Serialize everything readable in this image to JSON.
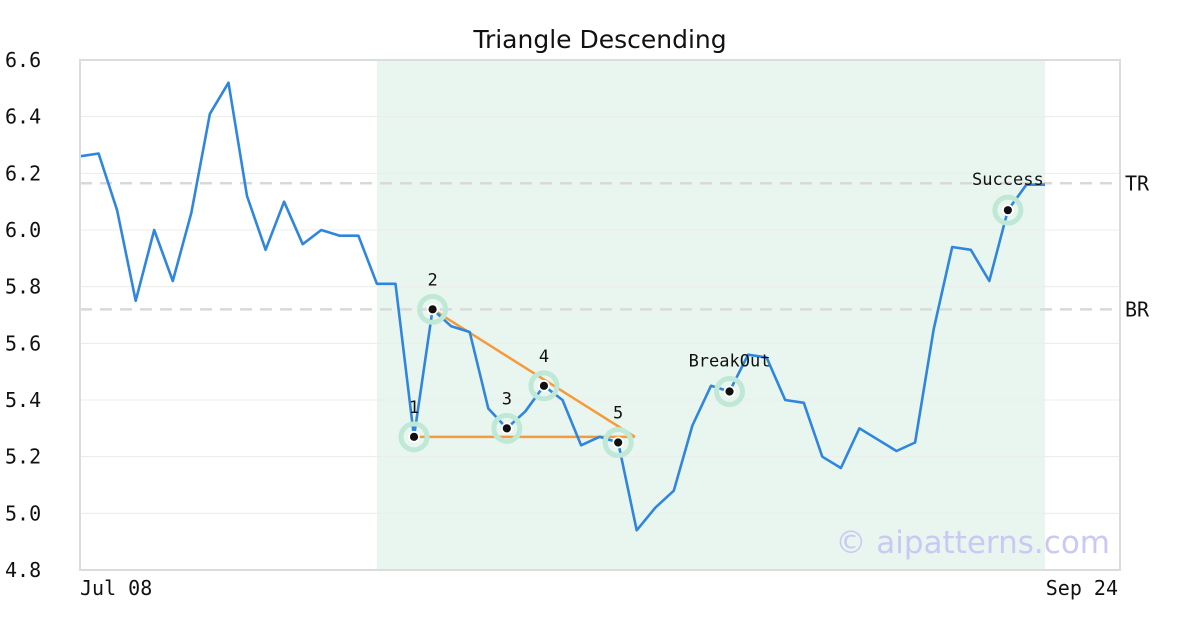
{
  "chart_data": {
    "type": "line",
    "title": "Triangle Descending",
    "watermark": "© aipatterns.com",
    "ylim": [
      4.8,
      6.6
    ],
    "y_ticks": [
      "6.6",
      "6.4",
      "6.2",
      "6.0",
      "5.8",
      "5.6",
      "5.4",
      "5.2",
      "5.0",
      "4.8"
    ],
    "x_tick_labels": [
      "Jul 08",
      "Sep 24"
    ],
    "grid": true,
    "colors": {
      "price": "#2f86de",
      "pattern": "#f59b3c",
      "highlight": "#e9f6ef",
      "marker_ring": "#bfe8d6",
      "level_line": "#d9d9d9"
    },
    "series": [
      {
        "values": [
          6.26,
          6.27,
          6.07,
          5.75,
          6.0,
          5.82,
          6.06,
          6.41,
          6.52,
          6.12,
          5.93,
          6.1,
          5.95,
          6.0,
          5.98,
          5.98,
          5.81,
          5.81,
          5.27,
          5.72,
          5.66,
          5.64,
          5.37,
          5.3,
          5.36,
          5.45,
          5.4,
          5.24,
          5.27,
          5.25,
          4.94,
          5.02,
          5.08,
          5.31,
          5.45,
          5.43,
          5.56,
          5.55,
          5.4,
          5.39,
          5.2,
          5.16,
          5.3,
          5.26,
          5.22,
          5.25,
          5.65,
          5.94,
          5.93,
          5.82,
          6.07,
          6.16,
          6.16
        ]
      }
    ],
    "highlight_range": [
      16,
      52
    ],
    "levels": [
      {
        "label": "TR",
        "value": 6.165
      },
      {
        "label": "BR",
        "value": 5.72
      }
    ],
    "pattern_points": [
      {
        "label": "1",
        "index": 18,
        "value": 5.27
      },
      {
        "label": "2",
        "index": 19,
        "value": 5.72
      },
      {
        "label": "3",
        "index": 23,
        "value": 5.3
      },
      {
        "label": "4",
        "index": 25,
        "value": 5.45
      },
      {
        "label": "5",
        "index": 29,
        "value": 5.25
      }
    ],
    "pattern_lines": [
      {
        "from": {
          "index": 18,
          "value": 5.27
        },
        "to": {
          "index": 29.9,
          "value": 5.27
        }
      },
      {
        "from": {
          "index": 19,
          "value": 5.72
        },
        "to": {
          "index": 29.9,
          "value": 5.27
        }
      }
    ],
    "events": [
      {
        "label": "BreakOut",
        "index": 35,
        "value": 5.43
      },
      {
        "label": "Success",
        "index": 50,
        "value": 6.07
      }
    ]
  }
}
